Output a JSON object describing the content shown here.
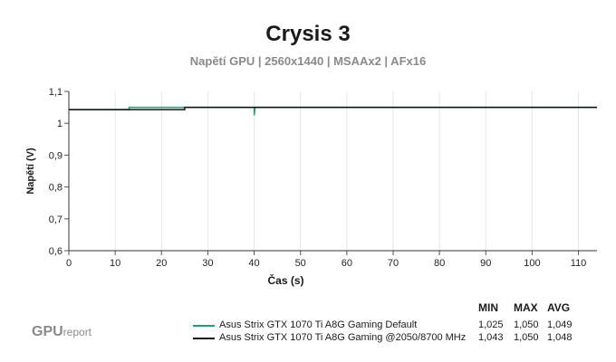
{
  "chart_data": {
    "type": "line",
    "title": "Crysis 3",
    "subtitle": "Napětí GPU | 2560x1440 | MSAAx2 | AFx16",
    "xlabel": "Čas (s)",
    "ylabel": "Napětí (V)",
    "xlim": [
      0,
      114
    ],
    "ylim": [
      0.6,
      1.1
    ],
    "x_ticks": [
      "0",
      "10",
      "20",
      "30",
      "40",
      "50",
      "60",
      "70",
      "80",
      "90",
      "100",
      "110"
    ],
    "y_ticks": [
      "0,6",
      "0,7",
      "0,8",
      "0,9",
      "1",
      "1,1"
    ],
    "x_tick_values": [
      0,
      10,
      20,
      30,
      40,
      50,
      60,
      70,
      80,
      90,
      100,
      110
    ],
    "y_tick_values": [
      0.6,
      0.7,
      0.8,
      0.9,
      1.0,
      1.1
    ],
    "grid": "vertical",
    "legend_placement": "bottom",
    "stats_headers": {
      "min": "MIN",
      "max": "MAX",
      "avg": "AVG"
    },
    "series": [
      {
        "name": "Asus Strix GTX 1070 Ti A8G Gaming Default",
        "color": "#1e9e72",
        "min": "1,025",
        "max": "1,050",
        "avg": "1,049",
        "points": [
          [
            0,
            1.043
          ],
          [
            13,
            1.043
          ],
          [
            13,
            1.05
          ],
          [
            40,
            1.05
          ],
          [
            40,
            1.025
          ],
          [
            40.2,
            1.05
          ],
          [
            114,
            1.05
          ]
        ]
      },
      {
        "name": "Asus Strix GTX 1070 Ti A8G Gaming @2050/8700 MHz",
        "color": "#111111",
        "min": "1,043",
        "max": "1,050",
        "avg": "1,048",
        "points": [
          [
            0,
            1.043
          ],
          [
            25,
            1.043
          ],
          [
            25,
            1.05
          ],
          [
            114,
            1.05
          ]
        ]
      }
    ]
  },
  "brand": {
    "main": "GPU",
    "small": "report"
  }
}
